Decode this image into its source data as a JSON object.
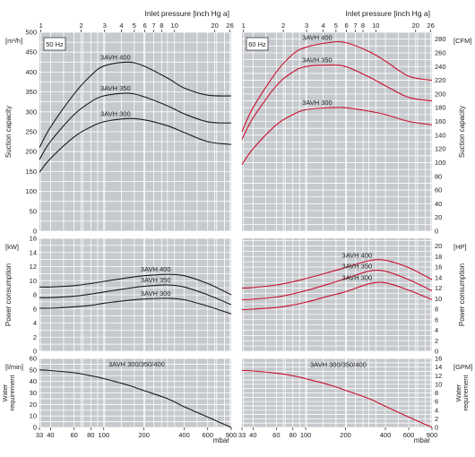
{
  "top_axis": {
    "label": "Inlet pressure [inch Hg a]",
    "ticks": [
      {
        "label": "1",
        "mbar": 33.86
      },
      {
        "label": "2",
        "mbar": 67.73
      },
      {
        "label": "3",
        "mbar": 101.59
      },
      {
        "label": "4",
        "mbar": 135.46
      },
      {
        "label": "5",
        "mbar": 169.32
      },
      {
        "label": "6",
        "mbar": 203.18
      },
      {
        "label": "7",
        "mbar": 237.05
      },
      {
        "label": "8",
        "mbar": 270.91
      },
      {
        "label": "10",
        "mbar": 338.64
      },
      {
        "label": "20",
        "mbar": 677.28
      },
      {
        "label": "26",
        "mbar": 880.46
      }
    ]
  },
  "bottom_axis": {
    "unit": "mbar",
    "ticks": [
      {
        "label": "33",
        "mbar": 33
      },
      {
        "label": "40",
        "mbar": 40
      },
      {
        "label": "60",
        "mbar": 60
      },
      {
        "label": "80",
        "mbar": 80
      },
      {
        "label": "100",
        "mbar": 100
      },
      {
        "label": "200",
        "mbar": 200
      },
      {
        "label": "400",
        "mbar": 400
      },
      {
        "label": "600",
        "mbar": 600
      },
      {
        "label": "900",
        "mbar": 900
      }
    ]
  },
  "freq_labels": {
    "left": "50 Hz",
    "right": "60 Hz"
  },
  "colors": {
    "background": "#c6c9cd",
    "grid": "#ffffff",
    "left_curve": "#1a1a1a",
    "right_curve": "#c8102e"
  },
  "chart_data": [
    {
      "type": "line",
      "panel": "suction-capacity-50hz",
      "ylabel": "Suction capacity",
      "unit": "[m³/h]",
      "ylim": [
        0,
        500
      ],
      "yticks": [
        0,
        50,
        100,
        150,
        200,
        250,
        300,
        350,
        400,
        450,
        500
      ],
      "x": [
        33,
        40,
        60,
        80,
        100,
        150,
        200,
        300,
        400,
        600,
        900
      ],
      "series": [
        {
          "name": "3AVH 400",
          "values": [
            210,
            262,
            345,
            391,
            415,
            425,
            415,
            385,
            360,
            342,
            340
          ]
        },
        {
          "name": "3AVH 350",
          "values": [
            180,
            226,
            293,
            325,
            340,
            347,
            338,
            315,
            295,
            275,
            272
          ]
        },
        {
          "name": "3AVH 300",
          "values": [
            148,
            183,
            237,
            262,
            275,
            283,
            280,
            265,
            248,
            225,
            218
          ]
        }
      ]
    },
    {
      "type": "line",
      "panel": "suction-capacity-60hz",
      "ylabel": "Suction capacity",
      "unit": "[CFM]",
      "ylim": [
        0,
        290
      ],
      "yticks": [
        0,
        20,
        40,
        60,
        80,
        100,
        120,
        140,
        160,
        180,
        200,
        220,
        240,
        260,
        280
      ],
      "x": [
        33,
        40,
        60,
        80,
        100,
        150,
        200,
        300,
        400,
        600,
        900
      ],
      "series": [
        {
          "name": "3AVH 400",
          "values": [
            145,
            180,
            232,
            258,
            268,
            275,
            275,
            262,
            248,
            226,
            220
          ]
        },
        {
          "name": "3AVH 350",
          "values": [
            134,
            165,
            212,
            232,
            240,
            242,
            240,
            225,
            212,
            195,
            190
          ]
        },
        {
          "name": "3AVH 300",
          "values": [
            97,
            120,
            155,
            170,
            177,
            180,
            180,
            175,
            170,
            160,
            155
          ]
        }
      ]
    },
    {
      "type": "line",
      "panel": "power-consumption-50hz",
      "ylabel": "Power consumption",
      "unit": "[kW]",
      "ylim": [
        0,
        16
      ],
      "yticks": [
        0,
        2,
        4,
        6,
        8,
        10,
        12,
        14,
        16
      ],
      "x": [
        33,
        40,
        60,
        80,
        100,
        150,
        200,
        300,
        400,
        600,
        900
      ],
      "series": [
        {
          "name": "3AVH 400",
          "values": [
            9.1,
            9.1,
            9.3,
            9.6,
            9.9,
            10.4,
            10.7,
            10.9,
            10.7,
            9.6,
            8.0
          ]
        },
        {
          "name": "3AVH 350",
          "values": [
            7.6,
            7.6,
            7.8,
            8.1,
            8.4,
            8.9,
            9.2,
            9.4,
            9.1,
            8.0,
            6.6
          ]
        },
        {
          "name": "3AVH 300",
          "values": [
            6.1,
            6.1,
            6.3,
            6.5,
            6.8,
            7.2,
            7.4,
            7.5,
            7.3,
            6.4,
            5.3
          ]
        }
      ]
    },
    {
      "type": "line",
      "panel": "power-consumption-60hz",
      "ylabel": "Power consumption",
      "unit": "[HP]",
      "ylim": [
        0,
        21.45
      ],
      "yticks": [
        0,
        2,
        4,
        6,
        8,
        10,
        12,
        14,
        16,
        18,
        20
      ],
      "x": [
        33,
        40,
        60,
        80,
        100,
        150,
        200,
        300,
        400,
        600,
        900
      ],
      "series": [
        {
          "name": "3AVH 400",
          "values": [
            12.0,
            12.1,
            12.6,
            13.2,
            13.8,
            15.0,
            15.9,
            17.2,
            17.3,
            15.9,
            13.6
          ]
        },
        {
          "name": "3AVH 350",
          "values": [
            9.8,
            9.9,
            10.3,
            10.9,
            11.5,
            12.8,
            13.8,
            15.2,
            15.2,
            13.6,
            11.5
          ]
        },
        {
          "name": "3AVH 300",
          "values": [
            7.9,
            8.0,
            8.3,
            8.8,
            9.3,
            10.5,
            11.3,
            12.8,
            13.0,
            11.6,
            9.8
          ]
        }
      ]
    },
    {
      "type": "line",
      "panel": "water-requirement-50hz",
      "ylabel": "Water requirement",
      "unit": "[l/min]",
      "ylim": [
        0,
        60
      ],
      "yticks": [
        0,
        10,
        20,
        30,
        40,
        50,
        60
      ],
      "x": [
        33,
        40,
        60,
        80,
        100,
        150,
        200,
        300,
        400,
        600,
        900
      ],
      "series": [
        {
          "name": "3AVH 300/350/400",
          "values": [
            50,
            49.5,
            47.5,
            45,
            42.5,
            37,
            32,
            25,
            18,
            9,
            0
          ]
        }
      ]
    },
    {
      "type": "line",
      "panel": "water-requirement-60hz",
      "ylabel": "Water requirement",
      "unit": "[GPM]",
      "ylim": [
        0,
        16
      ],
      "yticks": [
        0,
        2,
        4,
        6,
        8,
        10,
        12,
        14,
        16
      ],
      "x": [
        33,
        40,
        60,
        80,
        100,
        150,
        200,
        300,
        400,
        600,
        900
      ],
      "series": [
        {
          "name": "3AVH 300/350/400",
          "values": [
            13.2,
            13.1,
            12.6,
            12.0,
            11.3,
            9.9,
            8.6,
            6.7,
            4.9,
            2.4,
            0
          ]
        }
      ]
    }
  ]
}
